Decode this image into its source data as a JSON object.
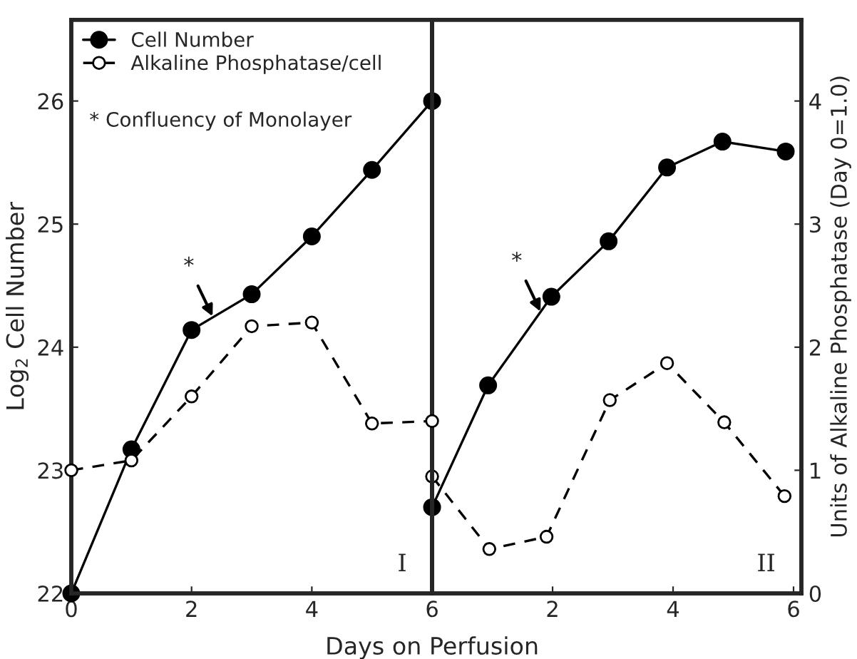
{
  "chart_data": [
    {
      "type": "line",
      "xlabel": "Days on Perfusion",
      "ylabel": "Log$_{2}$ Cell Number",
      "xlim": [
        0,
        6
      ],
      "xticks": [
        0,
        2,
        4,
        6
      ],
      "ylim": [
        22,
        26.66
      ],
      "yticks": [
        22,
        23,
        24,
        25,
        26
      ],
      "y2lim": [
        0,
        4.66
      ],
      "tick_labels": [
        "x",
        "y"
      ],
      "grid": false,
      "legend": "top left",
      "marker": "circle",
      "series": [
        {
          "name": "Cell Number",
          "color": "#000000",
          "line_style": "solid",
          "x": [
            0,
            1,
            2,
            3,
            4,
            5,
            6
          ],
          "values": [
            22.0,
            23.17,
            24.14,
            24.43,
            24.9,
            25.44,
            26.0
          ]
        },
        {
          "name": "Alkaline Phosphatase/cell",
          "color": "#000000",
          "line_style": "dashed",
          "axis": "y2",
          "x": [
            0,
            1,
            2,
            3,
            4,
            5,
            6
          ],
          "values": [
            1.0,
            1.08,
            1.6,
            2.17,
            2.2,
            1.38,
            1.4
          ]
        }
      ],
      "annotations": [
        "* Confluency of Monolayer",
        {
          "text": "*",
          "x": 2.35,
          "y": 24.25
        },
        "I"
      ]
    },
    {
      "type": "line",
      "y2label": "Units of Alkaline Phosphatase (Day 0=1.0)",
      "xlim": [
        0,
        6.13
      ],
      "xticks": [
        {
          "value": 0,
          "label": null
        },
        2,
        4,
        6
      ],
      "ylim": [
        22,
        26.66
      ],
      "y2lim": [
        0,
        4.66
      ],
      "y2ticks": [
        0,
        1,
        2,
        3,
        4
      ],
      "tick_labels": [
        "x",
        "y2"
      ],
      "grid": false,
      "marker": "circle",
      "series": [
        {
          "color": "#000000",
          "line_style": "solid",
          "x": [
            0,
            0.93,
            1.98,
            2.93,
            3.9,
            4.82,
            5.87
          ],
          "values": [
            22.7,
            23.69,
            24.41,
            24.86,
            25.46,
            25.67,
            25.59
          ]
        },
        {
          "color": "#000000",
          "line_style": "dashed",
          "axis": "y2",
          "x": [
            0,
            0.95,
            1.9,
            2.95,
            3.9,
            4.85,
            5.85
          ],
          "values": [
            0.95,
            0.36,
            0.46,
            1.57,
            1.87,
            1.39,
            0.79
          ]
        }
      ],
      "annotations": [
        {
          "text": "*",
          "x": 1.8,
          "y": 24.29
        },
        "II"
      ]
    }
  ]
}
